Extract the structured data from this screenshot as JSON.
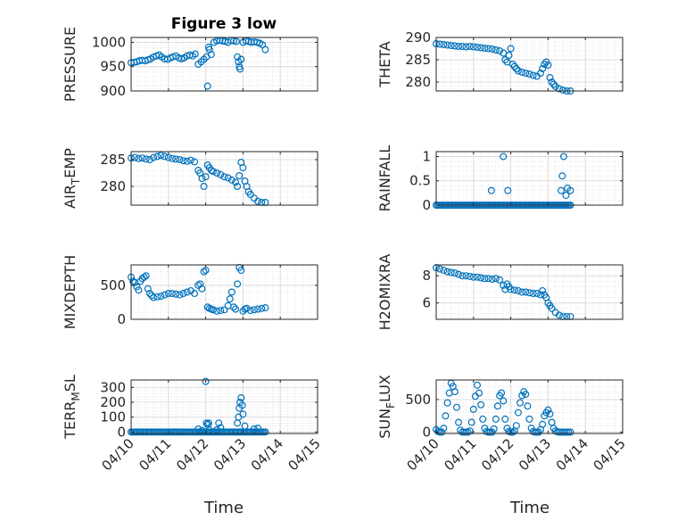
{
  "figure": {
    "title": "Figure 3 low",
    "xlabel_left": "Time",
    "xlabel_right": "Time",
    "marker_color": "#0072BD",
    "x_tick_labels": [
      "04/10",
      "04/11",
      "04/12",
      "04/13",
      "04/14",
      "04/15"
    ]
  },
  "chart_data": [
    {
      "type": "scatter",
      "ylabel": "PRESSURE",
      "title": "Figure 3 low",
      "ylim": [
        900,
        1010
      ],
      "yticks": [
        900,
        950,
        1000
      ],
      "xlim": [
        0,
        5
      ],
      "x_unit": "days since 04/10",
      "grid": true,
      "x": [
        0.0,
        0.08,
        0.15,
        0.22,
        0.3,
        0.38,
        0.45,
        0.52,
        0.6,
        0.68,
        0.75,
        0.82,
        0.9,
        0.98,
        1.05,
        1.12,
        1.2,
        1.28,
        1.35,
        1.42,
        1.5,
        1.58,
        1.65,
        1.72,
        1.8,
        1.88,
        1.95,
        2.02,
        2.05,
        2.08,
        2.1,
        2.15,
        2.22,
        2.3,
        2.38,
        2.45,
        2.52,
        2.6,
        2.68,
        2.75,
        2.82,
        2.85,
        2.88,
        2.9,
        2.92,
        2.95,
        3.0,
        3.08,
        3.15,
        3.22,
        3.3,
        3.38,
        3.45,
        3.52,
        3.6
      ],
      "y": [
        958,
        959,
        960,
        962,
        963,
        962,
        964,
        966,
        970,
        972,
        974,
        970,
        966,
        965,
        968,
        970,
        972,
        968,
        966,
        968,
        972,
        974,
        972,
        976,
        955,
        960,
        965,
        970,
        910,
        990,
        985,
        975,
        1000,
        1003,
        1004,
        1003,
        1002,
        1000,
        1004,
        1003,
        1002,
        970,
        960,
        950,
        945,
        965,
        1000,
        1003,
        1002,
        1000,
        1001,
        1000,
        998,
        995,
        985
      ]
    },
    {
      "type": "scatter",
      "ylabel": "THETA",
      "ylim": [
        278,
        290
      ],
      "yticks": [
        280,
        285,
        290
      ],
      "xlim": [
        0,
        5
      ],
      "grid": true,
      "x": [
        0.0,
        0.1,
        0.2,
        0.3,
        0.4,
        0.5,
        0.6,
        0.7,
        0.8,
        0.9,
        1.0,
        1.1,
        1.2,
        1.3,
        1.4,
        1.5,
        1.6,
        1.7,
        1.8,
        1.85,
        1.9,
        1.95,
        2.0,
        2.05,
        2.1,
        2.15,
        2.2,
        2.3,
        2.4,
        2.5,
        2.6,
        2.7,
        2.8,
        2.85,
        2.9,
        2.95,
        3.0,
        3.05,
        3.1,
        3.15,
        3.2,
        3.3,
        3.4,
        3.5,
        3.6
      ],
      "y": [
        288.6,
        288.5,
        288.4,
        288.3,
        288.2,
        288.1,
        288.0,
        288.0,
        287.9,
        288.0,
        287.9,
        287.8,
        287.7,
        287.6,
        287.5,
        287.4,
        287.2,
        287.0,
        286.5,
        285.0,
        284.5,
        286.0,
        287.5,
        284.0,
        283.5,
        283.0,
        282.5,
        282.2,
        282.0,
        281.8,
        281.5,
        281.3,
        282.0,
        283.0,
        284.0,
        284.5,
        283.8,
        281.0,
        280.0,
        279.5,
        279.0,
        278.5,
        278.2,
        278.0,
        278.0
      ]
    },
    {
      "type": "scatter",
      "ylabel": "AIR_TEMP",
      "ylim": [
        276.5,
        286.5
      ],
      "yticks": [
        280,
        285
      ],
      "xlim": [
        0,
        5
      ],
      "grid": true,
      "x": [
        0.0,
        0.1,
        0.2,
        0.3,
        0.4,
        0.5,
        0.6,
        0.7,
        0.8,
        0.9,
        1.0,
        1.1,
        1.2,
        1.3,
        1.4,
        1.5,
        1.6,
        1.7,
        1.8,
        1.85,
        1.9,
        1.95,
        2.0,
        2.05,
        2.1,
        2.15,
        2.2,
        2.3,
        2.4,
        2.5,
        2.6,
        2.7,
        2.8,
        2.85,
        2.9,
        2.95,
        3.0,
        3.05,
        3.1,
        3.15,
        3.2,
        3.3,
        3.4,
        3.5,
        3.6
      ],
      "y": [
        285.3,
        285.4,
        285.2,
        285.3,
        285.1,
        285.0,
        285.4,
        285.6,
        285.8,
        285.6,
        285.4,
        285.2,
        285.1,
        285.0,
        284.8,
        284.7,
        284.9,
        284.6,
        283.0,
        282.5,
        281.5,
        280.0,
        281.8,
        284.0,
        283.5,
        283.0,
        282.8,
        282.5,
        282.2,
        281.8,
        281.6,
        281.2,
        280.8,
        280.0,
        282.0,
        284.5,
        283.5,
        281.0,
        280.0,
        279.0,
        278.5,
        277.8,
        277.2,
        277.0,
        277.0
      ]
    },
    {
      "type": "scatter",
      "ylabel": "RAINFALL",
      "ylim": [
        0,
        1.1
      ],
      "yticks": [
        0,
        0.5,
        1
      ],
      "ytick_labels": [
        "0",
        "0.5",
        "1"
      ],
      "xlim": [
        0,
        5
      ],
      "grid": true,
      "x_zero_range": [
        0,
        3.6
      ],
      "x": [
        1.48,
        1.8,
        1.92,
        3.35,
        3.38,
        3.42,
        3.48,
        3.52,
        3.6
      ],
      "y": [
        0.3,
        1.0,
        0.3,
        0.3,
        0.6,
        1.0,
        0.2,
        0.35,
        0.3
      ]
    },
    {
      "type": "scatter",
      "ylabel": "MIXDEPTH",
      "ylim": [
        0,
        800
      ],
      "yticks": [
        0,
        500
      ],
      "xlim": [
        0,
        5
      ],
      "grid": true,
      "x": [
        0.0,
        0.05,
        0.1,
        0.15,
        0.2,
        0.25,
        0.3,
        0.35,
        0.4,
        0.45,
        0.5,
        0.55,
        0.6,
        0.7,
        0.8,
        0.9,
        1.0,
        1.1,
        1.2,
        1.3,
        1.4,
        1.5,
        1.6,
        1.7,
        1.8,
        1.85,
        1.9,
        1.95,
        2.0,
        2.05,
        2.1,
        2.15,
        2.2,
        2.3,
        2.4,
        2.5,
        2.6,
        2.65,
        2.7,
        2.75,
        2.8,
        2.85,
        2.9,
        2.95,
        3.0,
        3.05,
        3.1,
        3.2,
        3.3,
        3.4,
        3.5,
        3.6
      ],
      "y": [
        620,
        560,
        540,
        480,
        430,
        560,
        600,
        620,
        640,
        450,
        380,
        350,
        320,
        330,
        340,
        360,
        380,
        380,
        370,
        360,
        380,
        400,
        420,
        380,
        500,
        520,
        450,
        700,
        720,
        180,
        160,
        150,
        140,
        120,
        130,
        140,
        200,
        300,
        400,
        180,
        150,
        520,
        760,
        720,
        120,
        150,
        160,
        130,
        140,
        150,
        160,
        170
      ]
    },
    {
      "type": "scatter",
      "ylabel": "H2OMIXRA",
      "ylim": [
        4.8,
        8.8
      ],
      "yticks": [
        6,
        8
      ],
      "xlim": [
        0,
        5
      ],
      "grid": true,
      "x": [
        0.0,
        0.1,
        0.2,
        0.3,
        0.4,
        0.5,
        0.6,
        0.7,
        0.8,
        0.9,
        1.0,
        1.1,
        1.2,
        1.3,
        1.4,
        1.5,
        1.6,
        1.7,
        1.8,
        1.85,
        1.9,
        1.95,
        2.0,
        2.1,
        2.2,
        2.3,
        2.4,
        2.5,
        2.6,
        2.7,
        2.8,
        2.85,
        2.9,
        2.95,
        3.0,
        3.05,
        3.1,
        3.2,
        3.3,
        3.4,
        3.5,
        3.6
      ],
      "y": [
        8.6,
        8.5,
        8.4,
        8.3,
        8.25,
        8.2,
        8.1,
        8.0,
        8.0,
        7.95,
        7.9,
        7.9,
        7.85,
        7.8,
        7.8,
        7.75,
        7.8,
        7.7,
        7.3,
        7.0,
        7.4,
        7.2,
        7.0,
        6.95,
        6.9,
        6.8,
        6.8,
        6.75,
        6.7,
        6.7,
        6.6,
        6.9,
        6.6,
        6.4,
        6.0,
        5.8,
        5.6,
        5.3,
        5.1,
        5.0,
        5.0,
        5.0
      ]
    },
    {
      "type": "scatter",
      "ylabel": "TERR_MSL",
      "ylim": [
        -10,
        350
      ],
      "yticks": [
        0,
        100,
        200,
        300
      ],
      "xlim": [
        0,
        5
      ],
      "grid": true,
      "x_zero_range": [
        0,
        3.6
      ],
      "x": [
        1.8,
        1.9,
        2.0,
        2.02,
        2.05,
        2.08,
        2.1,
        2.3,
        2.35,
        2.4,
        2.85,
        2.88,
        2.9,
        2.92,
        2.95,
        2.98,
        3.0,
        3.05,
        3.3,
        3.4
      ],
      "y": [
        20,
        10,
        340,
        60,
        50,
        60,
        15,
        15,
        60,
        30,
        60,
        100,
        160,
        200,
        230,
        180,
        120,
        40,
        20,
        25
      ]
    },
    {
      "type": "scatter",
      "ylabel": "SUN_FLUX",
      "ylim": [
        -20,
        800
      ],
      "yticks": [
        0,
        500
      ],
      "xlim": [
        0,
        5
      ],
      "grid": true,
      "x": [
        0.0,
        0.05,
        0.1,
        0.15,
        0.2,
        0.25,
        0.3,
        0.35,
        0.4,
        0.45,
        0.5,
        0.55,
        0.6,
        0.65,
        0.7,
        0.75,
        0.8,
        0.85,
        0.9,
        0.95,
        1.0,
        1.05,
        1.1,
        1.15,
        1.2,
        1.25,
        1.3,
        1.35,
        1.4,
        1.45,
        1.5,
        1.55,
        1.6,
        1.65,
        1.7,
        1.75,
        1.8,
        1.85,
        1.9,
        1.95,
        2.0,
        2.05,
        2.1,
        2.15,
        2.2,
        2.25,
        2.3,
        2.35,
        2.4,
        2.45,
        2.5,
        2.55,
        2.6,
        2.65,
        2.7,
        2.75,
        2.8,
        2.85,
        2.9,
        2.95,
        3.0,
        3.05,
        3.1,
        3.15,
        3.2,
        3.25,
        3.3,
        3.35,
        3.4,
        3.45,
        3.5,
        3.55,
        3.6
      ],
      "y": [
        40,
        10,
        0,
        0,
        60,
        250,
        450,
        600,
        750,
        700,
        620,
        380,
        150,
        30,
        0,
        0,
        0,
        0,
        20,
        150,
        350,
        550,
        720,
        600,
        420,
        200,
        60,
        10,
        0,
        0,
        0,
        50,
        200,
        400,
        560,
        600,
        480,
        200,
        60,
        10,
        0,
        0,
        20,
        100,
        300,
        450,
        560,
        620,
        580,
        400,
        200,
        60,
        10,
        0,
        0,
        0,
        40,
        120,
        250,
        300,
        340,
        280,
        150,
        60,
        20,
        5,
        0,
        0,
        0,
        0,
        0,
        0,
        0
      ]
    }
  ]
}
